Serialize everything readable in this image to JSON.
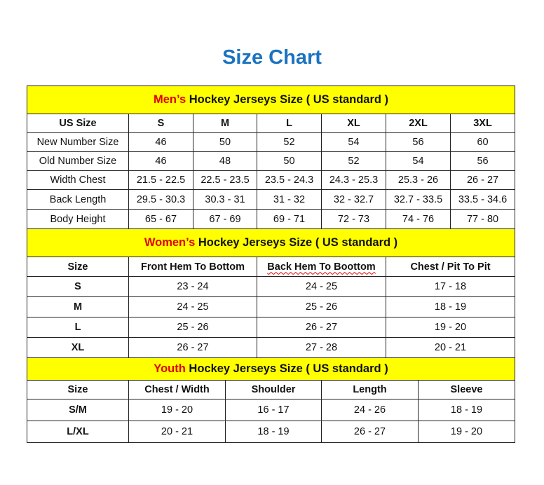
{
  "title": "Size Chart",
  "colors": {
    "title": "#1a73c0",
    "section_bg": "#ffff00",
    "highlight": "#e00000"
  },
  "men": {
    "title_highlight": "Men’s",
    "title_rest": " Hockey Jerseys Size ( US standard )",
    "headers": [
      "US Size",
      "S",
      "M",
      "L",
      "XL",
      "2XL",
      "3XL"
    ],
    "rows": [
      [
        "New Number Size",
        "46",
        "50",
        "52",
        "54",
        "56",
        "60"
      ],
      [
        "Old Number Size",
        "46",
        "48",
        "50",
        "52",
        "54",
        "56"
      ],
      [
        "Width Chest",
        "21.5 - 22.5",
        "22.5 - 23.5",
        "23.5 - 24.3",
        "24.3 - 25.3",
        "25.3 - 26",
        "26 - 27"
      ],
      [
        "Back Length",
        "29.5 - 30.3",
        "30.3 - 31",
        "31 - 32",
        "32 - 32.7",
        "32.7 - 33.5",
        "33.5 - 34.6"
      ],
      [
        "Body Height",
        "65 - 67",
        "67 - 69",
        "69 - 71",
        "72 - 73",
        "74 - 76",
        "77 - 80"
      ]
    ]
  },
  "women": {
    "title_highlight": "Women’s",
    "title_rest": " Hockey Jerseys Size ( US standard )",
    "headers": [
      "Size",
      "Front Hem To Bottom",
      "Back Hem To Boottom",
      "Chest / Pit To Pit"
    ],
    "rows": [
      [
        "S",
        "23 - 24",
        "24 - 25",
        "17 - 18"
      ],
      [
        "M",
        "24 - 25",
        "25 - 26",
        "18 - 19"
      ],
      [
        "L",
        "25 - 26",
        "26 - 27",
        "19 - 20"
      ],
      [
        "XL",
        "26 - 27",
        "27 - 28",
        "20 - 21"
      ]
    ]
  },
  "youth": {
    "title_highlight": "Youth",
    "title_rest": " Hockey Jerseys Size ( US standard )",
    "headers": [
      "Size",
      "Chest / Width",
      "Shoulder",
      "Length",
      "Sleeve"
    ],
    "rows": [
      [
        "S/M",
        "19 - 20",
        "16 - 17",
        "24 - 26",
        "18 - 19"
      ],
      [
        "L/XL",
        "20 - 21",
        "18 - 19",
        "26 - 27",
        "19 - 20"
      ]
    ]
  }
}
